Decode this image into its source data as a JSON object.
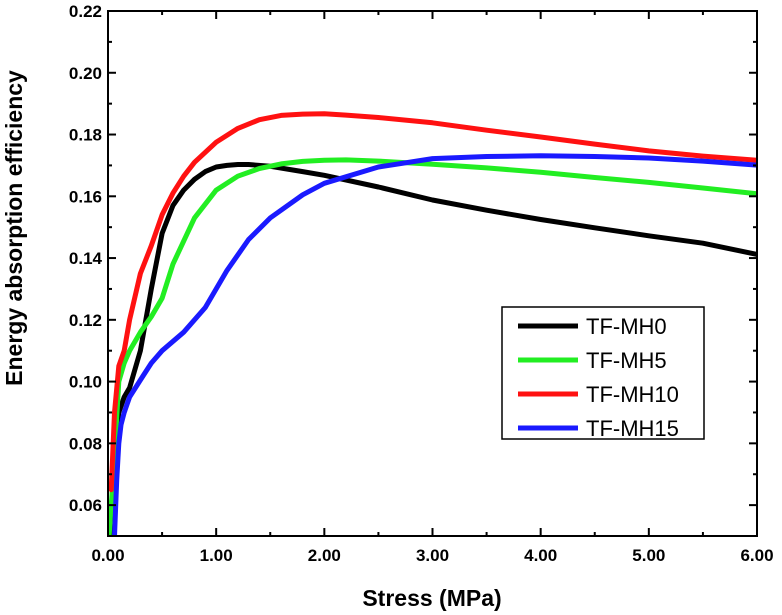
{
  "chart_data": {
    "type": "line",
    "title": "",
    "xlabel": "Stress (MPa)",
    "ylabel": "Energy absorption efficiency",
    "xlim": [
      0,
      6
    ],
    "ylim": [
      0.05,
      0.22
    ],
    "xticks": [
      0,
      1,
      2,
      3,
      4,
      5,
      6
    ],
    "xtick_labels": [
      "0.00",
      "1.00",
      "2.00",
      "3.00",
      "4.00",
      "5.00",
      "6.00"
    ],
    "yticks": [
      0.06,
      0.08,
      0.1,
      0.12,
      0.14,
      0.16,
      0.18,
      0.2,
      0.22
    ],
    "ytick_labels": [
      "0.06",
      "0.08",
      "0.10",
      "0.12",
      "0.14",
      "0.16",
      "0.18",
      "0.20",
      "0.22"
    ],
    "grid": false,
    "legend_position": "center-right",
    "series": [
      {
        "name": "TF-MH0",
        "color": "#000000",
        "x": [
          0.02,
          0.06,
          0.1,
          0.15,
          0.2,
          0.3,
          0.4,
          0.5,
          0.6,
          0.7,
          0.8,
          0.9,
          1.0,
          1.1,
          1.2,
          1.3,
          1.5,
          1.8,
          2.0,
          2.5,
          3.0,
          3.5,
          4.0,
          4.5,
          5.0,
          5.5,
          6.0
        ],
        "y": [
          0.05,
          0.078,
          0.09,
          0.095,
          0.098,
          0.11,
          0.13,
          0.148,
          0.157,
          0.162,
          0.1655,
          0.168,
          0.1695,
          0.17,
          0.1703,
          0.1703,
          0.1697,
          0.168,
          0.1668,
          0.163,
          0.1588,
          0.1555,
          0.1525,
          0.1498,
          0.1472,
          0.1448,
          0.1412
        ]
      },
      {
        "name": "TF-MH5",
        "color": "#22ee22",
        "x": [
          0.01,
          0.05,
          0.1,
          0.15,
          0.2,
          0.3,
          0.4,
          0.5,
          0.6,
          0.8,
          1.0,
          1.2,
          1.4,
          1.6,
          1.8,
          2.0,
          2.2,
          2.5,
          3.0,
          3.5,
          4.0,
          4.5,
          5.0,
          5.5,
          6.0
        ],
        "y": [
          0.05,
          0.07,
          0.1,
          0.106,
          0.11,
          0.116,
          0.121,
          0.127,
          0.138,
          0.153,
          0.162,
          0.1665,
          0.169,
          0.1705,
          0.1713,
          0.1717,
          0.1718,
          0.1714,
          0.1704,
          0.1692,
          0.1678,
          0.1661,
          0.1645,
          0.1627,
          0.1608
        ]
      },
      {
        "name": "TF-MH10",
        "color": "#ff1111",
        "x": [
          0.03,
          0.06,
          0.1,
          0.15,
          0.2,
          0.3,
          0.4,
          0.5,
          0.6,
          0.7,
          0.8,
          1.0,
          1.2,
          1.4,
          1.6,
          1.8,
          2.0,
          2.2,
          2.5,
          3.0,
          3.5,
          4.0,
          4.5,
          5.0,
          5.5,
          6.0
        ],
        "y": [
          0.065,
          0.09,
          0.105,
          0.11,
          0.12,
          0.135,
          0.144,
          0.154,
          0.161,
          0.1665,
          0.171,
          0.1775,
          0.182,
          0.1848,
          0.1862,
          0.1866,
          0.1867,
          0.1863,
          0.1855,
          0.1838,
          0.1814,
          0.1792,
          0.1769,
          0.1747,
          0.173,
          0.1717
        ]
      },
      {
        "name": "TF-MH15",
        "color": "#1a1aff",
        "x": [
          0.06,
          0.08,
          0.1,
          0.12,
          0.15,
          0.2,
          0.3,
          0.4,
          0.5,
          0.7,
          0.9,
          1.1,
          1.3,
          1.5,
          1.8,
          2.0,
          2.5,
          3.0,
          3.5,
          4.0,
          4.5,
          5.0,
          5.5,
          6.0
        ],
        "y": [
          0.05,
          0.068,
          0.08,
          0.086,
          0.09,
          0.095,
          0.1005,
          0.106,
          0.11,
          0.116,
          0.124,
          0.136,
          0.146,
          0.153,
          0.1605,
          0.1642,
          0.1695,
          0.1722,
          0.1729,
          0.1731,
          0.1729,
          0.1724,
          0.1714,
          0.1701
        ]
      }
    ]
  }
}
